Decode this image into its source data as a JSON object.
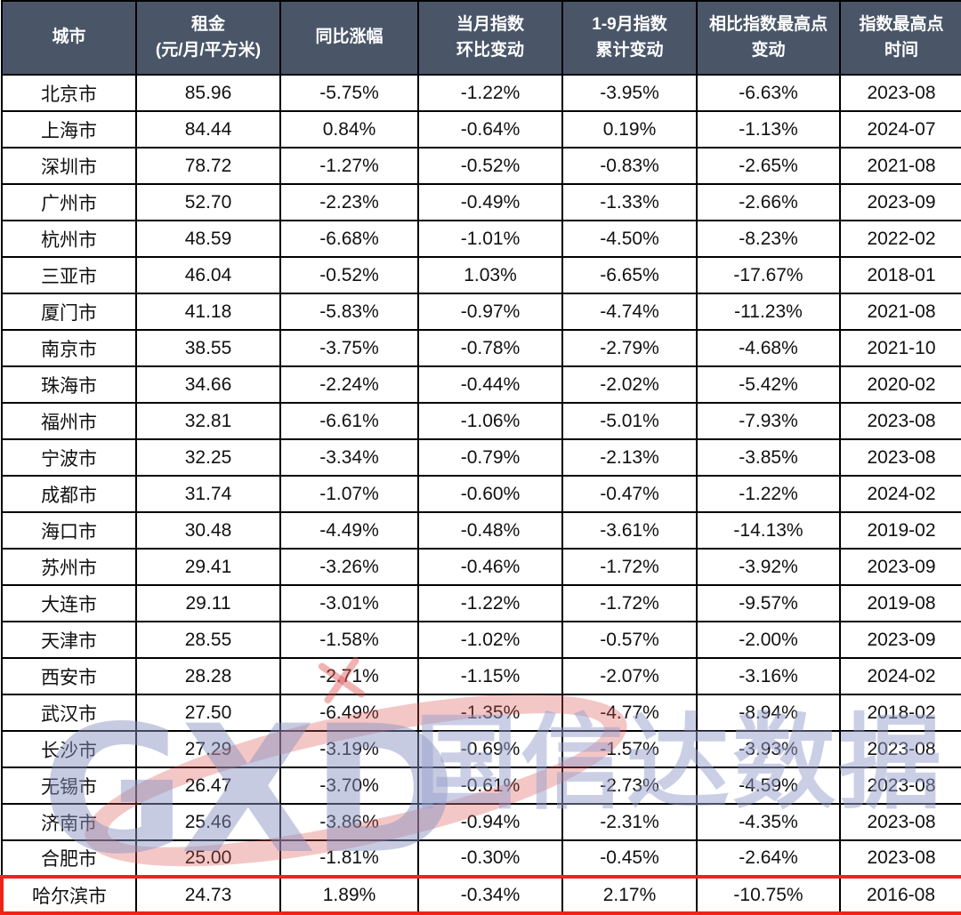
{
  "table": {
    "header_bg": "#4a5668",
    "header_text_color": "#ffffff",
    "border_color": "#000000",
    "highlight_border_color": "#f12317",
    "columns": [
      {
        "line1": "城市",
        "line2": ""
      },
      {
        "line1": "租金",
        "line2": "(元/月/平方米)"
      },
      {
        "line1": "同比涨幅",
        "line2": ""
      },
      {
        "line1": "当月指数",
        "line2": "环比变动"
      },
      {
        "line1": "1-9月指数",
        "line2": "累计变动"
      },
      {
        "line1": "相比指数最高点",
        "line2": "变动"
      },
      {
        "line1": "指数最高点",
        "line2": "时间"
      }
    ]
  },
  "watermark": {
    "logo_text": "GXD",
    "brand_text": "国信达数据",
    "logo_color": "#8892c1",
    "accent_color": "#df5555"
  },
  "chart_data": {
    "type": "table",
    "title": "",
    "columns": [
      "城市",
      "租金\n(元/月/平方米)",
      "同比涨幅",
      "当月指数\n环比变动",
      "1-9月指数\n累计变动",
      "相比指数最高点\n变动",
      "指数最高点\n时间"
    ],
    "rows": [
      [
        "北京市",
        "85.96",
        "-5.75%",
        "-1.22%",
        "-3.95%",
        "-6.63%",
        "2023-08"
      ],
      [
        "上海市",
        "84.44",
        "0.84%",
        "-0.64%",
        "0.19%",
        "-1.13%",
        "2024-07"
      ],
      [
        "深圳市",
        "78.72",
        "-1.27%",
        "-0.52%",
        "-0.83%",
        "-2.65%",
        "2021-08"
      ],
      [
        "广州市",
        "52.70",
        "-2.23%",
        "-0.49%",
        "-1.33%",
        "-2.66%",
        "2023-09"
      ],
      [
        "杭州市",
        "48.59",
        "-6.68%",
        "-1.01%",
        "-4.50%",
        "-8.23%",
        "2022-02"
      ],
      [
        "三亚市",
        "46.04",
        "-0.52%",
        "1.03%",
        "-6.65%",
        "-17.67%",
        "2018-01"
      ],
      [
        "厦门市",
        "41.18",
        "-5.83%",
        "-0.97%",
        "-4.74%",
        "-11.23%",
        "2021-08"
      ],
      [
        "南京市",
        "38.55",
        "-3.75%",
        "-0.78%",
        "-2.79%",
        "-4.68%",
        "2021-10"
      ],
      [
        "珠海市",
        "34.66",
        "-2.24%",
        "-0.44%",
        "-2.02%",
        "-5.42%",
        "2020-02"
      ],
      [
        "福州市",
        "32.81",
        "-6.61%",
        "-1.06%",
        "-5.01%",
        "-7.93%",
        "2023-08"
      ],
      [
        "宁波市",
        "32.25",
        "-3.34%",
        "-0.79%",
        "-2.13%",
        "-3.85%",
        "2023-08"
      ],
      [
        "成都市",
        "31.74",
        "-1.07%",
        "-0.60%",
        "-0.47%",
        "-1.22%",
        "2024-02"
      ],
      [
        "海口市",
        "30.48",
        "-4.49%",
        "-0.48%",
        "-3.61%",
        "-14.13%",
        "2019-02"
      ],
      [
        "苏州市",
        "29.41",
        "-3.26%",
        "-0.46%",
        "-1.72%",
        "-3.92%",
        "2023-09"
      ],
      [
        "大连市",
        "29.11",
        "-3.01%",
        "-1.22%",
        "-1.72%",
        "-9.57%",
        "2019-08"
      ],
      [
        "天津市",
        "28.55",
        "-1.58%",
        "-1.02%",
        "-0.57%",
        "-2.00%",
        "2023-09"
      ],
      [
        "西安市",
        "28.28",
        "-2.71%",
        "-1.15%",
        "-2.07%",
        "-3.16%",
        "2024-02"
      ],
      [
        "武汉市",
        "27.50",
        "-6.49%",
        "-1.35%",
        "-4.77%",
        "-8.94%",
        "2018-02"
      ],
      [
        "长沙市",
        "27.29",
        "-3.19%",
        "-0.69%",
        "-1.57%",
        "-3.93%",
        "2023-08"
      ],
      [
        "无锡市",
        "26.47",
        "-3.70%",
        "-0.61%",
        "-2.73%",
        "-4.59%",
        "2023-08"
      ],
      [
        "济南市",
        "25.46",
        "-3.86%",
        "-0.94%",
        "-2.31%",
        "-4.35%",
        "2023-08"
      ],
      [
        "合肥市",
        "25.00",
        "-1.81%",
        "-0.30%",
        "-0.45%",
        "-2.64%",
        "2023-08"
      ],
      [
        "哈尔滨市",
        "24.73",
        "1.89%",
        "-0.34%",
        "2.17%",
        "-10.75%",
        "2016-08"
      ]
    ],
    "highlighted_row_index": 22,
    "highlighted_row_city": "哈尔滨市"
  }
}
